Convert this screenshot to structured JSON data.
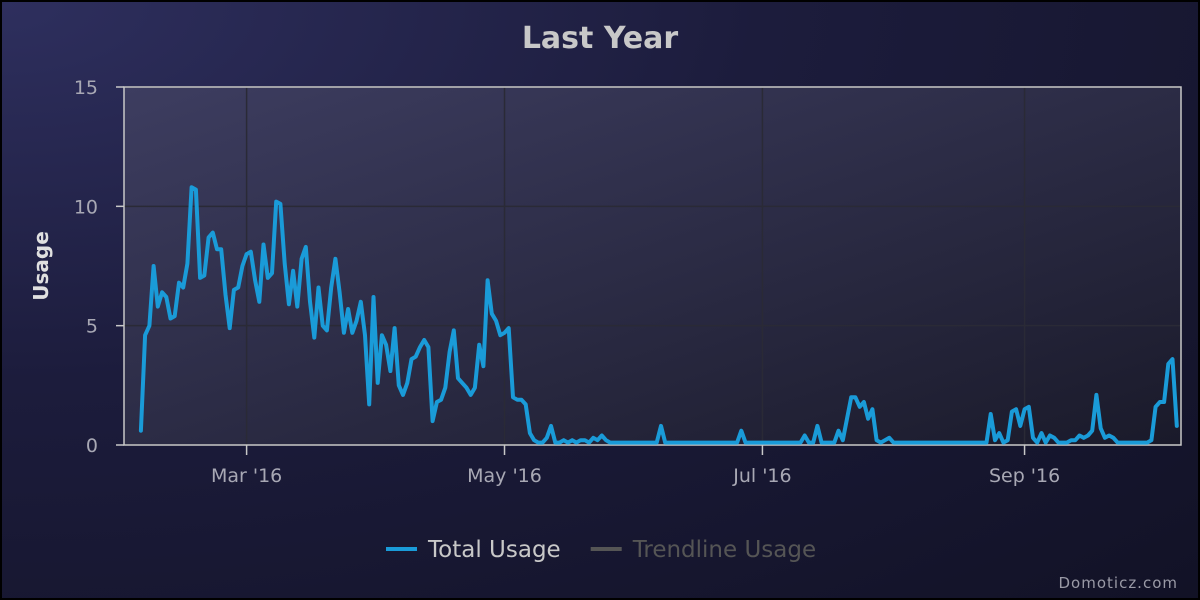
{
  "chart_data": {
    "type": "line",
    "title": "Last Year",
    "ylabel": "Usage",
    "xlabel": "",
    "ylim": [
      0,
      15
    ],
    "yticks": [
      0,
      5,
      10,
      15
    ],
    "xticks": [
      {
        "date": "2016-03-01",
        "label": "Mar '16"
      },
      {
        "date": "2016-05-01",
        "label": "May '16"
      },
      {
        "date": "2016-07-01",
        "label": "Jul '16"
      },
      {
        "date": "2016-09-01",
        "label": "Sep '16"
      }
    ],
    "xlim": [
      "2016-02-01",
      "2016-10-08"
    ],
    "grid": true,
    "legend_position": "bottom",
    "series": [
      {
        "name": "Total Usage",
        "color": "#1a9bd8",
        "enabled": true,
        "points": [
          [
            "2016-02-05",
            0.6
          ],
          [
            "2016-02-06",
            4.6
          ],
          [
            "2016-02-07",
            5.0
          ],
          [
            "2016-02-08",
            7.5
          ],
          [
            "2016-02-09",
            5.8
          ],
          [
            "2016-02-10",
            6.4
          ],
          [
            "2016-02-11",
            6.2
          ],
          [
            "2016-02-12",
            5.3
          ],
          [
            "2016-02-13",
            5.4
          ],
          [
            "2016-02-14",
            6.8
          ],
          [
            "2016-02-15",
            6.6
          ],
          [
            "2016-02-16",
            7.6
          ],
          [
            "2016-02-17",
            10.8
          ],
          [
            "2016-02-18",
            10.7
          ],
          [
            "2016-02-19",
            7.0
          ],
          [
            "2016-02-20",
            7.1
          ],
          [
            "2016-02-21",
            8.7
          ],
          [
            "2016-02-22",
            8.9
          ],
          [
            "2016-02-23",
            8.2
          ],
          [
            "2016-02-24",
            8.2
          ],
          [
            "2016-02-25",
            6.3
          ],
          [
            "2016-02-26",
            4.9
          ],
          [
            "2016-02-27",
            6.5
          ],
          [
            "2016-02-28",
            6.6
          ],
          [
            "2016-02-29",
            7.5
          ],
          [
            "2016-03-01",
            8.0
          ],
          [
            "2016-03-02",
            8.1
          ],
          [
            "2016-03-03",
            6.9
          ],
          [
            "2016-03-04",
            6.0
          ],
          [
            "2016-03-05",
            8.4
          ],
          [
            "2016-03-06",
            7.0
          ],
          [
            "2016-03-07",
            7.2
          ],
          [
            "2016-03-08",
            10.2
          ],
          [
            "2016-03-09",
            10.1
          ],
          [
            "2016-03-10",
            7.6
          ],
          [
            "2016-03-11",
            5.9
          ],
          [
            "2016-03-12",
            7.3
          ],
          [
            "2016-03-13",
            5.8
          ],
          [
            "2016-03-14",
            7.8
          ],
          [
            "2016-03-15",
            8.3
          ],
          [
            "2016-03-16",
            6.0
          ],
          [
            "2016-03-17",
            4.5
          ],
          [
            "2016-03-18",
            6.6
          ],
          [
            "2016-03-19",
            5.0
          ],
          [
            "2016-03-20",
            4.8
          ],
          [
            "2016-03-21",
            6.6
          ],
          [
            "2016-03-22",
            7.8
          ],
          [
            "2016-03-23",
            6.4
          ],
          [
            "2016-03-24",
            4.7
          ],
          [
            "2016-03-25",
            5.7
          ],
          [
            "2016-03-26",
            4.7
          ],
          [
            "2016-03-27",
            5.2
          ],
          [
            "2016-03-28",
            6.0
          ],
          [
            "2016-03-29",
            4.6
          ],
          [
            "2016-03-30",
            1.7
          ],
          [
            "2016-03-31",
            6.2
          ],
          [
            "2016-04-01",
            2.6
          ],
          [
            "2016-04-02",
            4.6
          ],
          [
            "2016-04-03",
            4.2
          ],
          [
            "2016-04-04",
            3.1
          ],
          [
            "2016-04-05",
            4.9
          ],
          [
            "2016-04-06",
            2.5
          ],
          [
            "2016-04-07",
            2.1
          ],
          [
            "2016-04-08",
            2.6
          ],
          [
            "2016-04-09",
            3.6
          ],
          [
            "2016-04-10",
            3.7
          ],
          [
            "2016-04-11",
            4.1
          ],
          [
            "2016-04-12",
            4.4
          ],
          [
            "2016-04-13",
            4.1
          ],
          [
            "2016-04-14",
            1.0
          ],
          [
            "2016-04-15",
            1.8
          ],
          [
            "2016-04-16",
            1.9
          ],
          [
            "2016-04-17",
            2.4
          ],
          [
            "2016-04-18",
            3.9
          ],
          [
            "2016-04-19",
            4.8
          ],
          [
            "2016-04-20",
            2.8
          ],
          [
            "2016-04-21",
            2.6
          ],
          [
            "2016-04-22",
            2.4
          ],
          [
            "2016-04-23",
            2.1
          ],
          [
            "2016-04-24",
            2.4
          ],
          [
            "2016-04-25",
            4.2
          ],
          [
            "2016-04-26",
            3.3
          ],
          [
            "2016-04-27",
            6.9
          ],
          [
            "2016-04-28",
            5.5
          ],
          [
            "2016-04-29",
            5.2
          ],
          [
            "2016-04-30",
            4.6
          ],
          [
            "2016-05-01",
            4.7
          ],
          [
            "2016-05-02",
            4.9
          ],
          [
            "2016-05-03",
            2.0
          ],
          [
            "2016-05-04",
            1.9
          ],
          [
            "2016-05-05",
            1.9
          ],
          [
            "2016-05-06",
            1.7
          ],
          [
            "2016-05-07",
            0.5
          ],
          [
            "2016-05-08",
            0.2
          ],
          [
            "2016-05-09",
            0.1
          ],
          [
            "2016-05-10",
            0.1
          ],
          [
            "2016-05-11",
            0.3
          ],
          [
            "2016-05-12",
            0.8
          ],
          [
            "2016-05-13",
            0.1
          ],
          [
            "2016-05-14",
            0.1
          ],
          [
            "2016-05-15",
            0.2
          ],
          [
            "2016-05-16",
            0.1
          ],
          [
            "2016-05-17",
            0.2
          ],
          [
            "2016-05-18",
            0.1
          ],
          [
            "2016-05-19",
            0.2
          ],
          [
            "2016-05-20",
            0.2
          ],
          [
            "2016-05-21",
            0.1
          ],
          [
            "2016-05-22",
            0.3
          ],
          [
            "2016-05-23",
            0.2
          ],
          [
            "2016-05-24",
            0.4
          ],
          [
            "2016-05-25",
            0.2
          ],
          [
            "2016-05-26",
            0.1
          ],
          [
            "2016-05-27",
            0.1
          ],
          [
            "2016-05-28",
            0.1
          ],
          [
            "2016-06-01",
            0.1
          ],
          [
            "2016-06-06",
            0.1
          ],
          [
            "2016-06-07",
            0.8
          ],
          [
            "2016-06-08",
            0.1
          ],
          [
            "2016-06-15",
            0.1
          ],
          [
            "2016-06-20",
            0.1
          ],
          [
            "2016-06-25",
            0.1
          ],
          [
            "2016-06-26",
            0.6
          ],
          [
            "2016-06-27",
            0.1
          ],
          [
            "2016-07-05",
            0.1
          ],
          [
            "2016-07-10",
            0.1
          ],
          [
            "2016-07-11",
            0.4
          ],
          [
            "2016-07-12",
            0.1
          ],
          [
            "2016-07-13",
            0.1
          ],
          [
            "2016-07-14",
            0.8
          ],
          [
            "2016-07-15",
            0.1
          ],
          [
            "2016-07-18",
            0.1
          ],
          [
            "2016-07-19",
            0.6
          ],
          [
            "2016-07-20",
            0.2
          ],
          [
            "2016-07-21",
            1.1
          ],
          [
            "2016-07-22",
            2.0
          ],
          [
            "2016-07-23",
            2.0
          ],
          [
            "2016-07-24",
            1.6
          ],
          [
            "2016-07-25",
            1.8
          ],
          [
            "2016-07-26",
            1.1
          ],
          [
            "2016-07-27",
            1.5
          ],
          [
            "2016-07-28",
            0.2
          ],
          [
            "2016-07-29",
            0.1
          ],
          [
            "2016-07-30",
            0.2
          ],
          [
            "2016-07-31",
            0.3
          ],
          [
            "2016-08-01",
            0.1
          ],
          [
            "2016-08-10",
            0.1
          ],
          [
            "2016-08-20",
            0.1
          ],
          [
            "2016-08-23",
            0.1
          ],
          [
            "2016-08-24",
            1.3
          ],
          [
            "2016-08-25",
            0.2
          ],
          [
            "2016-08-26",
            0.5
          ],
          [
            "2016-08-27",
            0.1
          ],
          [
            "2016-08-28",
            0.2
          ],
          [
            "2016-08-29",
            1.4
          ],
          [
            "2016-08-30",
            1.5
          ],
          [
            "2016-08-31",
            0.8
          ],
          [
            "2016-09-01",
            1.5
          ],
          [
            "2016-09-02",
            1.6
          ],
          [
            "2016-09-03",
            0.3
          ],
          [
            "2016-09-04",
            0.1
          ],
          [
            "2016-09-05",
            0.5
          ],
          [
            "2016-09-06",
            0.1
          ],
          [
            "2016-09-07",
            0.4
          ],
          [
            "2016-09-08",
            0.3
          ],
          [
            "2016-09-09",
            0.1
          ],
          [
            "2016-09-11",
            0.1
          ],
          [
            "2016-09-12",
            0.2
          ],
          [
            "2016-09-13",
            0.2
          ],
          [
            "2016-09-14",
            0.4
          ],
          [
            "2016-09-15",
            0.3
          ],
          [
            "2016-09-16",
            0.4
          ],
          [
            "2016-09-17",
            0.6
          ],
          [
            "2016-09-18",
            2.1
          ],
          [
            "2016-09-19",
            0.7
          ],
          [
            "2016-09-20",
            0.3
          ],
          [
            "2016-09-21",
            0.4
          ],
          [
            "2016-09-22",
            0.3
          ],
          [
            "2016-09-23",
            0.1
          ],
          [
            "2016-09-30",
            0.1
          ],
          [
            "2016-10-01",
            0.2
          ],
          [
            "2016-10-02",
            1.6
          ],
          [
            "2016-10-03",
            1.8
          ],
          [
            "2016-10-04",
            1.8
          ],
          [
            "2016-10-05",
            3.4
          ],
          [
            "2016-10-06",
            3.6
          ],
          [
            "2016-10-07",
            0.8
          ]
        ]
      },
      {
        "name": "Trendline Usage",
        "color": "#555555",
        "enabled": false,
        "points": []
      }
    ]
  },
  "credit": "Domoticz.com",
  "colors": {
    "series_line": "#1a9bd8",
    "legend_disabled_text": "#555555",
    "legend_active_text": "#c8c8c8"
  }
}
